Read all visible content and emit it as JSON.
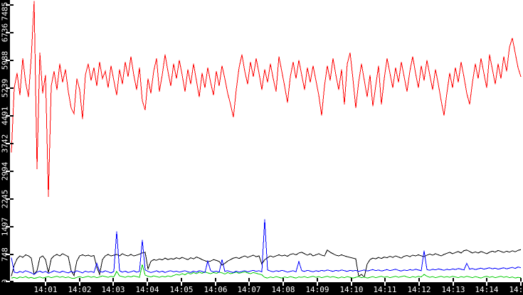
{
  "chart_data": {
    "type": "line",
    "title": "",
    "xlabel": "",
    "ylabel": "",
    "grid": false,
    "legend": "none",
    "plot_background": "#ffffff",
    "axis_strip_background": "#000000",
    "axis_text_color": "#ffffff",
    "x_axis": {
      "tick_labels": [
        "14:01",
        "14:02",
        "14:03",
        "14:04",
        "14:05",
        "14:06",
        "14:07",
        "14:08",
        "14:09",
        "14:10",
        "14:11",
        "14:12",
        "14:13",
        "14:14",
        "14:15"
      ],
      "tick_x": [
        64,
        112,
        159,
        207,
        255,
        303,
        350,
        398,
        446,
        494,
        541,
        589,
        637,
        684,
        732
      ]
    },
    "y_axis": {
      "tick_labels": [
        "0",
        "748",
        "1497",
        "2245",
        "2994",
        "3742",
        "4491",
        "5239",
        "5988",
        "6736",
        "7485"
      ],
      "tick_values": [
        0,
        748,
        1497,
        2245,
        2994,
        3742,
        4491,
        5239,
        5988,
        6736,
        7485
      ],
      "range": [
        0,
        7485
      ]
    },
    "series": [
      {
        "name": "black-series",
        "color": "#000000",
        "x0": 16,
        "dx": 4,
        "values": [
          150,
          450,
          620,
          700,
          660,
          730,
          700,
          640,
          200,
          300,
          650,
          700,
          600,
          250,
          620,
          700,
          740,
          700,
          760,
          720,
          680,
          300,
          170,
          560,
          700,
          730,
          700,
          720,
          690,
          710,
          400,
          200,
          600,
          700,
          740,
          700,
          720,
          740,
          700,
          760,
          720,
          700,
          740,
          700,
          720,
          750,
          780,
          800,
          350,
          550,
          600,
          580,
          620,
          590,
          640,
          600,
          630,
          610,
          650,
          620,
          660,
          630,
          600,
          650,
          620,
          670,
          640,
          600,
          570,
          540,
          560,
          600,
          580,
          550,
          450,
          500,
          560,
          600,
          640,
          660,
          630,
          670,
          700,
          660,
          690,
          720,
          680,
          700,
          480,
          600,
          650,
          700,
          670,
          700,
          730,
          700,
          720,
          690,
          740,
          760,
          730,
          780,
          800,
          760,
          720,
          760,
          700,
          730,
          760,
          720,
          700,
          860,
          800,
          760,
          720,
          700,
          730,
          700,
          680,
          660,
          640,
          620,
          150,
          200,
          130,
          480,
          600,
          640,
          620,
          660,
          630,
          670,
          650,
          690,
          660,
          700,
          670,
          640,
          690,
          710,
          680,
          720,
          700,
          730,
          700,
          680,
          720,
          750,
          720,
          760,
          730,
          700,
          740,
          770,
          800,
          760,
          790,
          820,
          780,
          840,
          860,
          820,
          780,
          810,
          780,
          820,
          790,
          760,
          800,
          830,
          800,
          850,
          820,
          790,
          830,
          800,
          840,
          810,
          850,
          870
        ]
      },
      {
        "name": "green-series",
        "color": "#00cc00",
        "x0": 16,
        "dx": 4,
        "values": [
          100,
          120,
          90,
          130,
          110,
          140,
          100,
          120,
          90,
          110,
          130,
          100,
          120,
          140,
          110,
          130,
          150,
          120,
          140,
          110,
          130,
          100,
          90,
          120,
          140,
          110,
          130,
          150,
          120,
          140,
          110,
          130,
          160,
          140,
          120,
          150,
          130,
          280,
          160,
          140,
          120,
          150,
          130,
          160,
          140,
          120,
          465,
          180,
          150,
          130,
          160,
          140,
          120,
          150,
          130,
          160,
          140,
          170,
          200,
          180,
          220,
          190,
          240,
          210,
          250,
          220,
          260,
          230,
          270,
          240,
          220,
          250,
          230,
          260,
          240,
          210,
          250,
          220,
          240,
          260,
          230,
          250,
          270,
          240,
          220,
          250,
          230,
          210,
          190,
          120,
          100,
          130,
          110,
          140,
          120,
          100,
          130,
          110,
          140,
          120,
          100,
          130,
          120,
          140,
          110,
          130,
          150,
          120,
          140,
          110,
          130,
          150,
          120,
          140,
          120,
          100,
          130,
          110,
          140,
          120,
          100,
          120,
          140,
          110,
          130,
          100,
          120,
          140,
          110,
          130,
          150,
          120,
          140,
          110,
          130,
          150,
          120,
          140,
          160,
          130,
          110,
          140,
          120,
          150,
          130,
          200,
          150,
          120,
          140,
          110,
          130,
          150,
          120,
          140,
          120,
          150,
          130,
          110,
          140,
          120,
          150,
          130,
          110,
          140,
          120,
          100,
          130,
          150,
          120,
          140,
          110,
          130,
          150,
          120,
          140,
          110,
          130,
          100,
          120,
          110
        ]
      },
      {
        "name": "blue-series",
        "color": "#0000ff",
        "x0": 16,
        "dx": 4,
        "values": [
          650,
          260,
          240,
          280,
          250,
          300,
          270,
          240,
          200,
          260,
          290,
          250,
          280,
          230,
          260,
          300,
          270,
          250,
          290,
          260,
          240,
          280,
          250,
          300,
          270,
          240,
          290,
          260,
          280,
          250,
          500,
          280,
          260,
          300,
          270,
          240,
          280,
          1360,
          300,
          260,
          290,
          250,
          270,
          300,
          260,
          280,
          1130,
          320,
          280,
          250,
          270,
          300,
          260,
          290,
          250,
          280,
          300,
          270,
          290,
          260,
          280,
          300,
          270,
          250,
          290,
          260,
          300,
          280,
          250,
          560,
          300,
          270,
          290,
          260,
          600,
          280,
          300,
          270,
          250,
          290,
          260,
          280,
          300,
          270,
          290,
          310,
          280,
          300,
          270,
          1690,
          320,
          290,
          270,
          300,
          280,
          310,
          290,
          260,
          280,
          300,
          270,
          550,
          300,
          280,
          310,
          290,
          270,
          300,
          280,
          310,
          290,
          320,
          300,
          280,
          310,
          290,
          320,
          300,
          280,
          310,
          290,
          310,
          280,
          300,
          320,
          290,
          310,
          330,
          300,
          320,
          290,
          310,
          330,
          300,
          320,
          340,
          310,
          290,
          320,
          300,
          330,
          310,
          340,
          320,
          300,
          840,
          330,
          310,
          340,
          320,
          350,
          330,
          310,
          340,
          320,
          350,
          330,
          360,
          340,
          320,
          500,
          340,
          360,
          330,
          350,
          370,
          340,
          360,
          380,
          350,
          370,
          340,
          360,
          380,
          350,
          370,
          390,
          360,
          400,
          380
        ]
      },
      {
        "name": "red-series",
        "color": "#ff0000",
        "x0": 16,
        "dx": 4,
        "values": [
          3500,
          5250,
          5650,
          5050,
          6050,
          5400,
          5000,
          6100,
          7600,
          3050,
          6200,
          5100,
          5600,
          2300,
          5300,
          5700,
          5200,
          5900,
          5400,
          5750,
          5150,
          4700,
          4550,
          5500,
          5200,
          4400,
          5600,
          5900,
          5450,
          5800,
          5300,
          5950,
          5500,
          5700,
          5250,
          5850,
          5450,
          5050,
          5750,
          5350,
          5950,
          5550,
          6100,
          5600,
          5200,
          5800,
          4900,
          4650,
          5500,
          5100,
          5700,
          6050,
          5150,
          5600,
          6150,
          5700,
          5300,
          5900,
          5500,
          6000,
          5600,
          5150,
          5750,
          5350,
          5900,
          5450,
          5000,
          5650,
          5250,
          5800,
          5400,
          5050,
          5700,
          5300,
          5850,
          5500,
          5100,
          4800,
          4450,
          5200,
          5800,
          6150,
          5700,
          5350,
          5950,
          5550,
          6050,
          5650,
          5200,
          5750,
          5400,
          5900,
          5500,
          5150,
          6100,
          5700,
          5300,
          4850,
          5550,
          5950,
          5500,
          6000,
          5600,
          5200,
          5800,
          5400,
          5850,
          5450,
          5050,
          4500,
          5300,
          5850,
          5450,
          6050,
          5600,
          5200,
          5750,
          4800,
          5900,
          6200,
          5500,
          4700,
          5400,
          5900,
          5450,
          5000,
          5600,
          4750,
          5300,
          5850,
          4800,
          5500,
          6050,
          5650,
          5250,
          5800,
          5400,
          5950,
          5550,
          5150,
          5700,
          6100,
          5650,
          5250,
          5850,
          5450,
          6000,
          5600,
          5200,
          5750,
          5350,
          4900,
          4500,
          5100,
          5650,
          5250,
          5800,
          5400,
          5950,
          5550,
          5100,
          4800,
          5400,
          5900,
          5500,
          6050,
          5650,
          5250,
          6150,
          5750,
          5350,
          5900,
          5500,
          6100,
          5700,
          6350,
          6600,
          6200,
          5800,
          5550
        ]
      }
    ]
  }
}
